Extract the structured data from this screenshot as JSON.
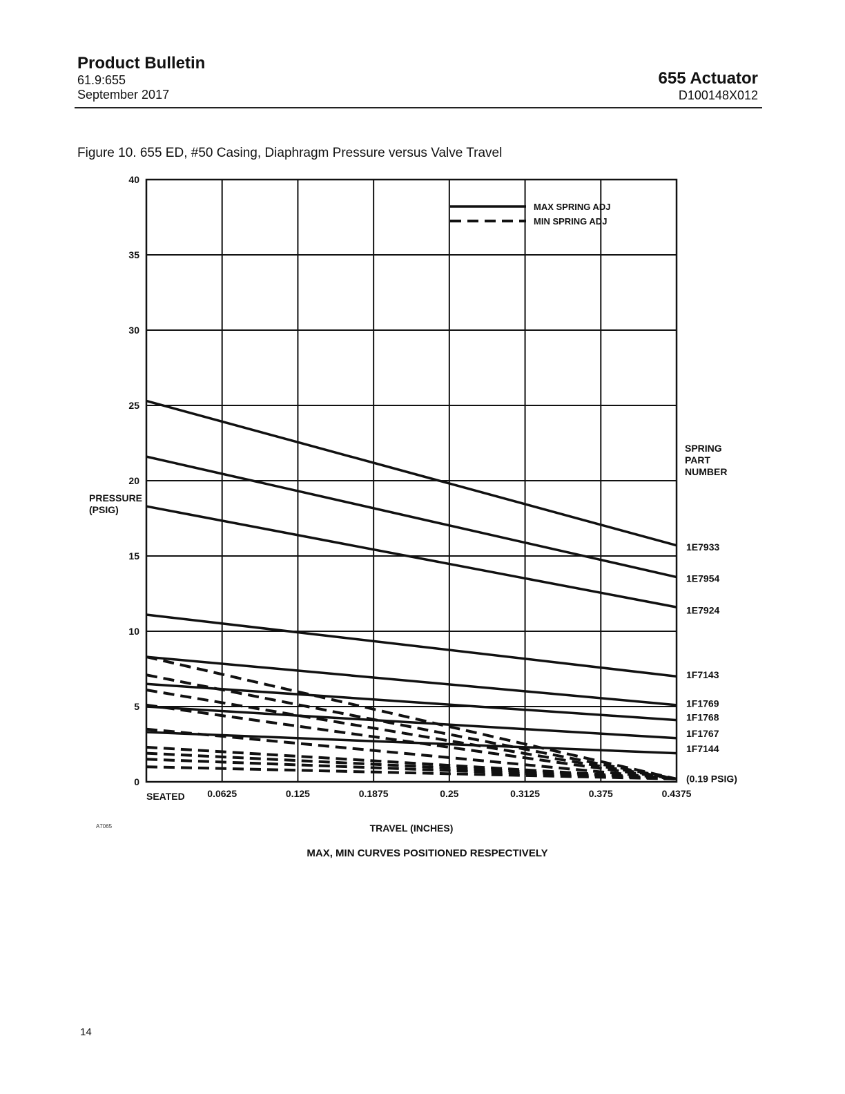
{
  "header": {
    "doc_type": "Product Bulletin",
    "doc_number": "61.9:655",
    "date": "September 2017",
    "product": "655 Actuator",
    "part_code": "D100148X012"
  },
  "figure": {
    "caption": "Figure 10. 655 ED, #50 Casing, Diaphragm Pressure versus Valve Travel",
    "art_id": "A7065"
  },
  "chart_data": {
    "type": "line",
    "title": "",
    "xlabel": "TRAVEL (INCHES)",
    "ylabel": "PRESSURE\n(PSIG)",
    "note": "MAX, MIN CURVES POSITIONED RESPECTIVELY",
    "x_ticks": [
      0,
      0.0625,
      0.125,
      0.1875,
      0.25,
      0.3125,
      0.375,
      0.4375
    ],
    "x_tick_labels": [
      "SEATED",
      "0.0625",
      "0.125",
      "0.1875",
      "0.25",
      "0.3125",
      "0.375",
      "0.4375"
    ],
    "y_ticks": [
      0,
      5,
      10,
      15,
      20,
      25,
      30,
      35,
      40
    ],
    "y_tick_labels": [
      "0",
      "5",
      "10",
      "15",
      "20",
      "25",
      "30",
      "35",
      "40"
    ],
    "xlim": [
      0,
      0.4375
    ],
    "ylim": [
      0,
      40
    ],
    "grid": true,
    "legend": {
      "placement": "top-right",
      "entries": [
        {
          "label": "MAX SPRING ADJ",
          "style": "solid"
        },
        {
          "label": "MIN SPRING ADJ",
          "style": "dashed"
        }
      ]
    },
    "spring_header": "SPRING\nPART\nNUMBER",
    "spring_labels": [
      {
        "label": "1E7933",
        "y": 15.6
      },
      {
        "label": "1E7954",
        "y": 13.5
      },
      {
        "label": "1E7924",
        "y": 11.4
      },
      {
        "label": "1F7143",
        "y": 7.1
      },
      {
        "label": "1F1769",
        "y": 5.2
      },
      {
        "label": "1F1768",
        "y": 4.3
      },
      {
        "label": "1F1767",
        "y": 3.2
      },
      {
        "label": "1F7144",
        "y": 2.2
      },
      {
        "label": "(0.19 PSIG)",
        "y": 0.2
      }
    ],
    "series": [
      {
        "name": "1E7933",
        "style": "solid",
        "x": [
          0,
          0.4375
        ],
        "y": [
          25.3,
          15.7
        ]
      },
      {
        "name": "1E7954",
        "style": "solid",
        "x": [
          0,
          0.4375
        ],
        "y": [
          21.6,
          13.6
        ]
      },
      {
        "name": "1E7924",
        "style": "solid",
        "x": [
          0,
          0.4375
        ],
        "y": [
          18.3,
          11.6
        ]
      },
      {
        "name": "1F7143",
        "style": "solid",
        "x": [
          0,
          0.4375
        ],
        "y": [
          11.1,
          7.0
        ]
      },
      {
        "name": "1F1769",
        "style": "solid",
        "x": [
          0,
          0.4375
        ],
        "y": [
          8.3,
          5.1
        ]
      },
      {
        "name": "1F1768",
        "style": "solid",
        "x": [
          0,
          0.4375
        ],
        "y": [
          6.5,
          4.1
        ]
      },
      {
        "name": "1F1767",
        "style": "solid",
        "x": [
          0,
          0.4375
        ],
        "y": [
          5.0,
          2.9
        ]
      },
      {
        "name": "1F7144",
        "style": "solid",
        "x": [
          0,
          0.4375
        ],
        "y": [
          3.3,
          1.9
        ]
      },
      {
        "name": "1F1769",
        "style": "dashed",
        "x": [
          0,
          0.4375
        ],
        "y": [
          8.3,
          0.19
        ]
      },
      {
        "name": "1F1768",
        "style": "dashed",
        "x": [
          0,
          0.4375
        ],
        "y": [
          7.1,
          0.19
        ]
      },
      {
        "name": "1F1767",
        "style": "dashed",
        "x": [
          0,
          0.4375
        ],
        "y": [
          6.1,
          0.19
        ]
      },
      {
        "name": "1F7143",
        "style": "dashed",
        "x": [
          0,
          0.4375
        ],
        "y": [
          5.1,
          0.19
        ]
      },
      {
        "name": "1E7933",
        "style": "dashed",
        "x": [
          0,
          0.4375
        ],
        "y": [
          3.5,
          0.19
        ]
      },
      {
        "name": "1E7954",
        "style": "dashed",
        "x": [
          0,
          0.4375
        ],
        "y": [
          2.3,
          0.19
        ]
      },
      {
        "name": "1E7924",
        "style": "dashed",
        "x": [
          0,
          0.4375
        ],
        "y": [
          1.9,
          0.19
        ]
      },
      {
        "name": "1F7144",
        "style": "dashed",
        "x": [
          0,
          0.4375
        ],
        "y": [
          1.5,
          0.19
        ]
      },
      {
        "name": "",
        "style": "dashed",
        "x": [
          0,
          0.4375
        ],
        "y": [
          1.0,
          0.19
        ]
      }
    ]
  },
  "footer": {
    "page_number": "14"
  }
}
